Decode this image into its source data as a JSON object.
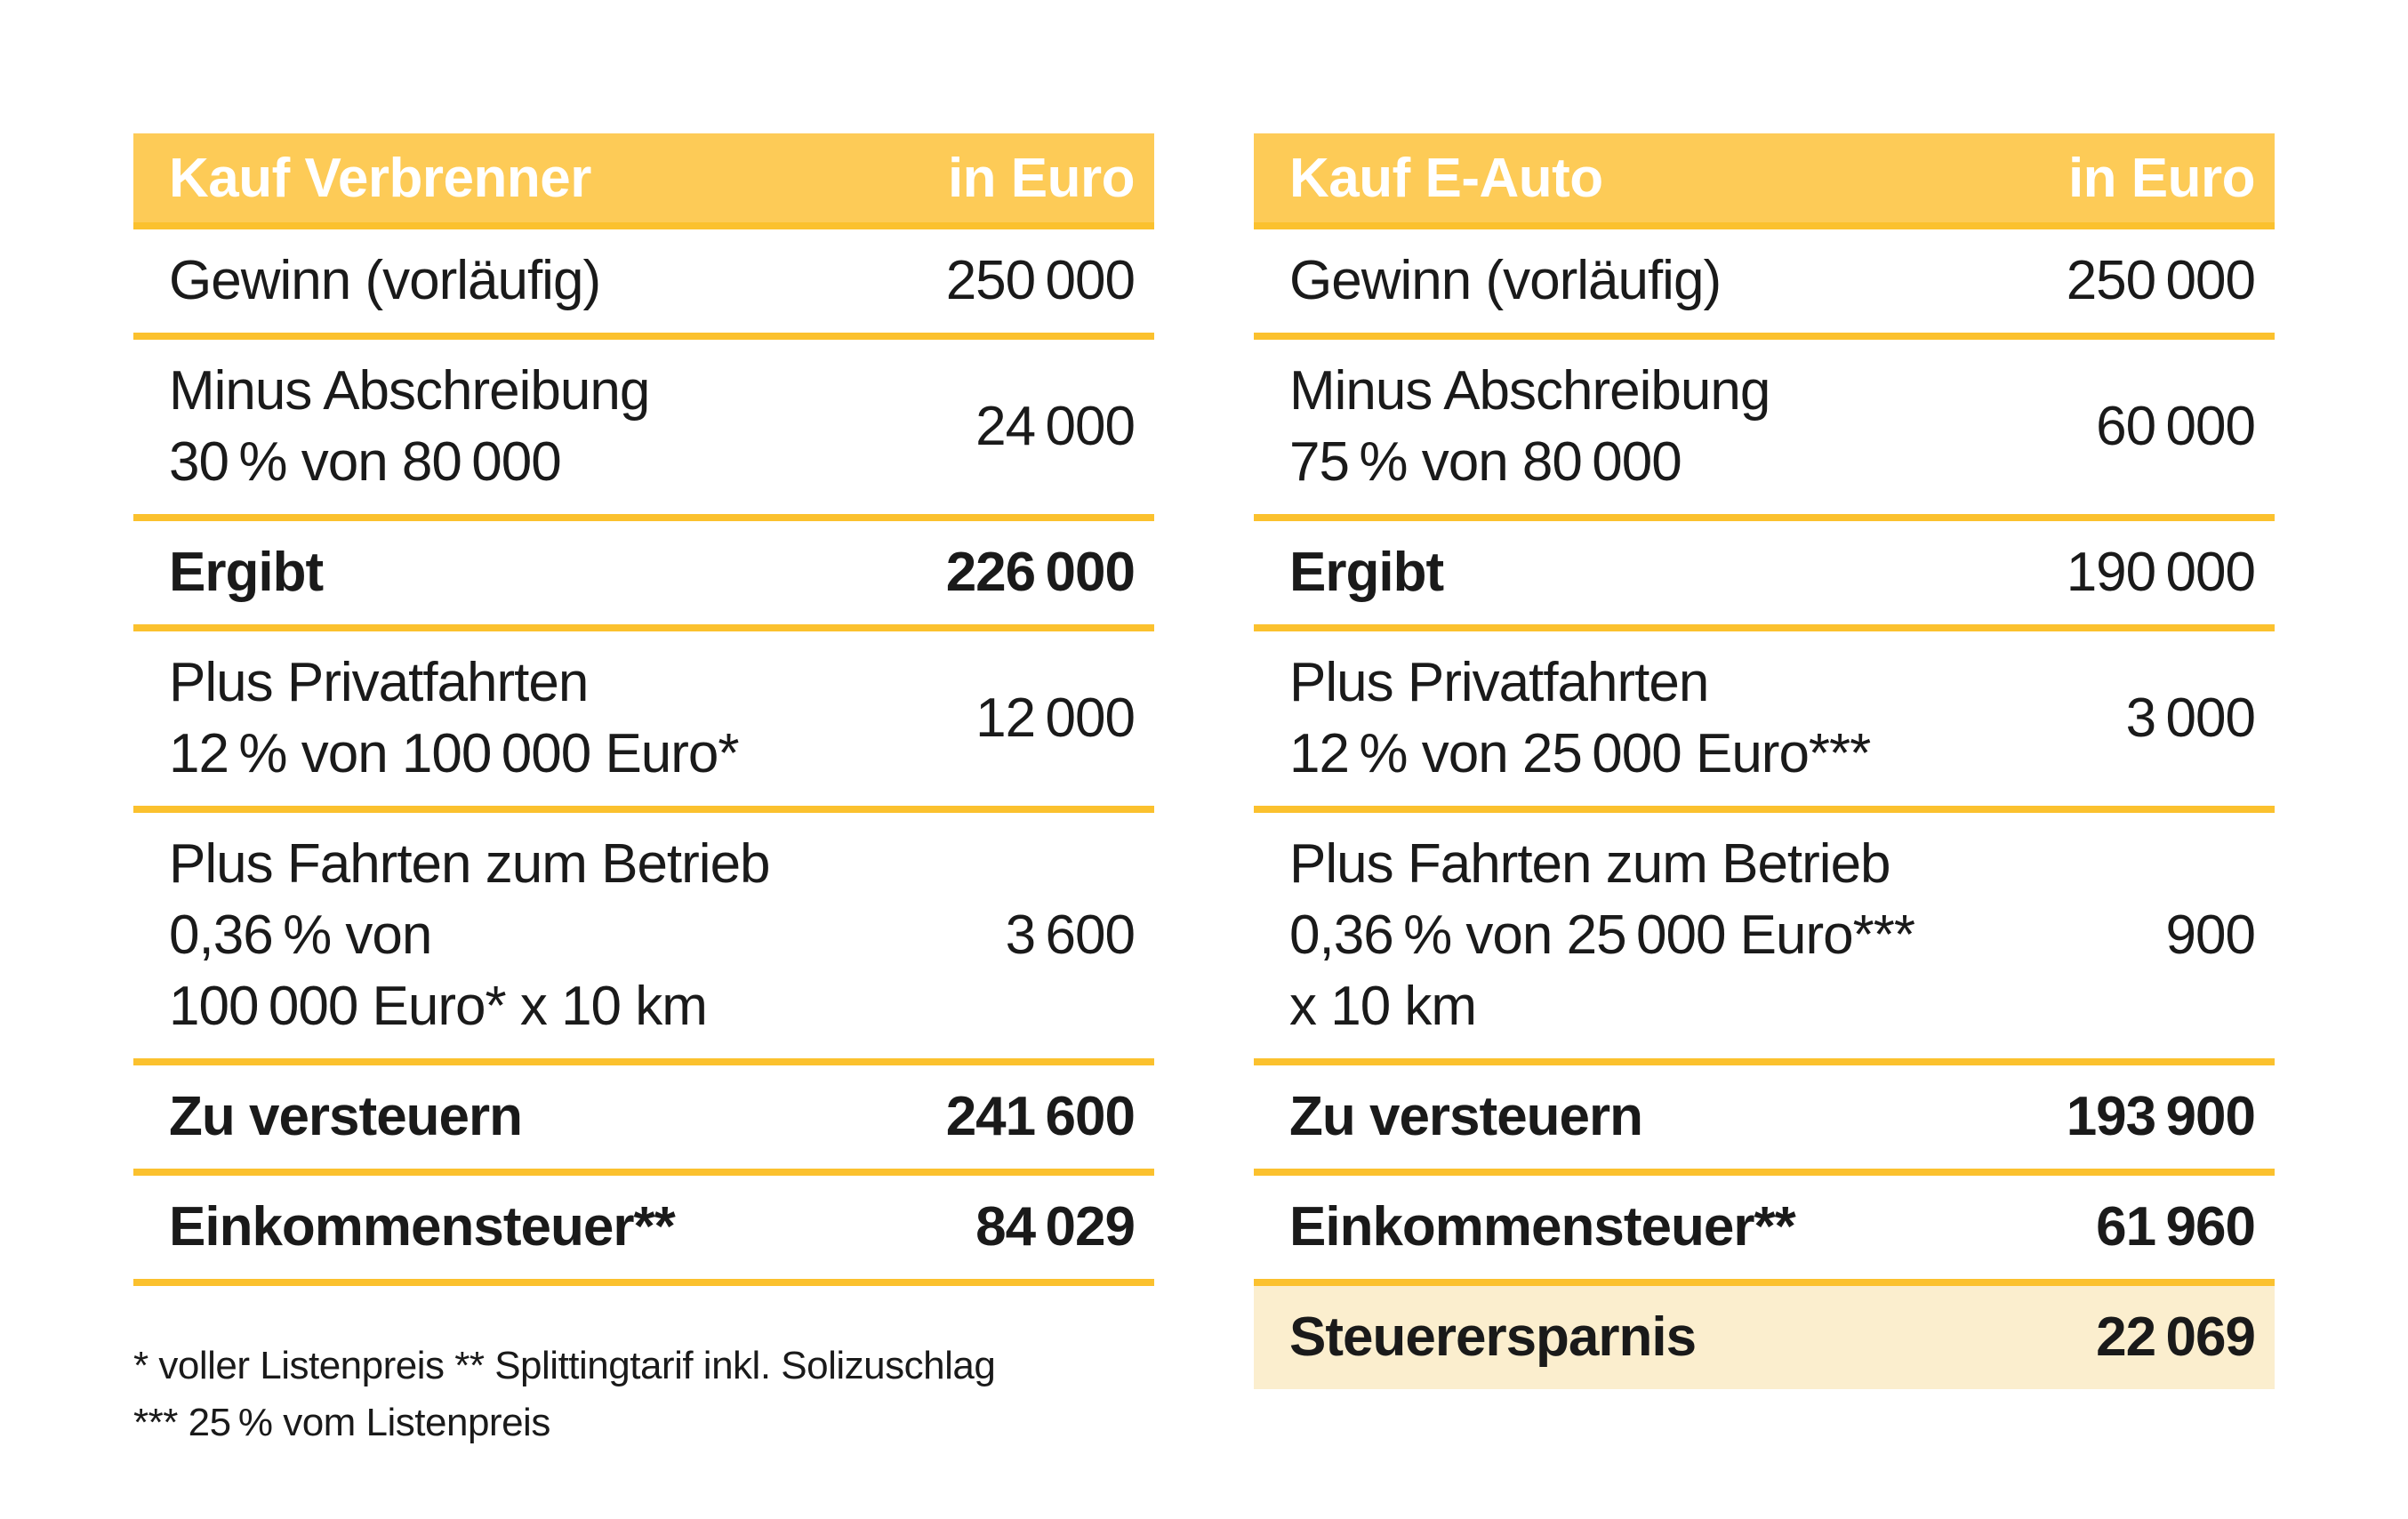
{
  "colors": {
    "header_bg": "#FDCB57",
    "divider": "#FBC12E",
    "highlight_bg": "#FBEECE",
    "header_text": "#FFFFFF",
    "text": "#1A1A1A"
  },
  "tables": [
    {
      "id": "kauf-verbrenner",
      "header": {
        "title": "Kauf Verbrenner",
        "unit": "in Euro"
      },
      "rows": [
        {
          "label": "Gewinn (vorläufig)",
          "value": "250 000"
        },
        {
          "label": "Minus Abschreibung\n30 % von 80 000",
          "value": "24 000"
        },
        {
          "label": "Ergibt",
          "value": "226 000"
        },
        {
          "label": "Plus Privatfahrten\n12 % von 100 000 Euro*",
          "value": "12 000"
        },
        {
          "label": "Plus Fahrten zum Betrieb\n0,36 % von\n100 000 Euro* x 10 km",
          "value": "3 600"
        },
        {
          "label": "Zu versteuern",
          "value": "241 600"
        },
        {
          "label": "Einkommensteuer**",
          "value": "84 029"
        }
      ]
    },
    {
      "id": "kauf-e-auto",
      "header": {
        "title": "Kauf E-Auto",
        "unit": "in Euro"
      },
      "rows": [
        {
          "label": "Gewinn (vorläufig)",
          "value": "250 000"
        },
        {
          "label": "Minus Abschreibung\n75 % von 80 000",
          "value": "60 000"
        },
        {
          "label": "Ergibt",
          "value": "190 000"
        },
        {
          "label": "Plus Privatfahrten\n12 % von 25 000 Euro***",
          "value": "3 000"
        },
        {
          "label": "Plus Fahrten zum Betrieb\n0,36 % von 25 000 Euro***\nx 10 km",
          "value": "900"
        },
        {
          "label": "Zu versteuern",
          "value": "193 900"
        },
        {
          "label": "Einkommensteuer**",
          "value": "61 960"
        },
        {
          "label": "Steuerersparnis",
          "value": "22 069"
        }
      ]
    }
  ],
  "footnote": {
    "text": "* voller Listenpreis ** Splittingtarif inkl. Solizuschlag\n*** 25 % vom Listenpreis"
  },
  "chart_data": [
    {
      "type": "table",
      "title": "Kauf Verbrenner",
      "columns": [
        "Kauf Verbrenner",
        "in Euro"
      ],
      "rows": [
        [
          "Gewinn (vorläufig)",
          250000
        ],
        [
          "Minus Abschreibung 30% von 80000",
          24000
        ],
        [
          "Ergibt",
          226000
        ],
        [
          "Plus Privatfahrten 12% von 100000 Euro*",
          12000
        ],
        [
          "Plus Fahrten zum Betrieb 0,36% von 100000 Euro* x 10 km",
          3600
        ],
        [
          "Zu versteuern",
          241600
        ],
        [
          "Einkommensteuer**",
          84029
        ]
      ]
    },
    {
      "type": "table",
      "title": "Kauf E-Auto",
      "columns": [
        "Kauf E-Auto",
        "in Euro"
      ],
      "rows": [
        [
          "Gewinn (vorläufig)",
          250000
        ],
        [
          "Minus Abschreibung 75% von 80000",
          60000
        ],
        [
          "Ergibt",
          190000
        ],
        [
          "Plus Privatfahrten 12% von 25000 Euro***",
          3000
        ],
        [
          "Plus Fahrten zum Betrieb 0,36% von 25000 Euro*** x 10 km",
          900
        ],
        [
          "Zu versteuern",
          193900
        ],
        [
          "Einkommensteuer**",
          61960
        ],
        [
          "Steuerersparnis",
          22069
        ]
      ],
      "notes": "* voller Listenpreis ** Splittingtarif inkl. Solizuschlag *** 25% vom Listenpreis"
    }
  ]
}
